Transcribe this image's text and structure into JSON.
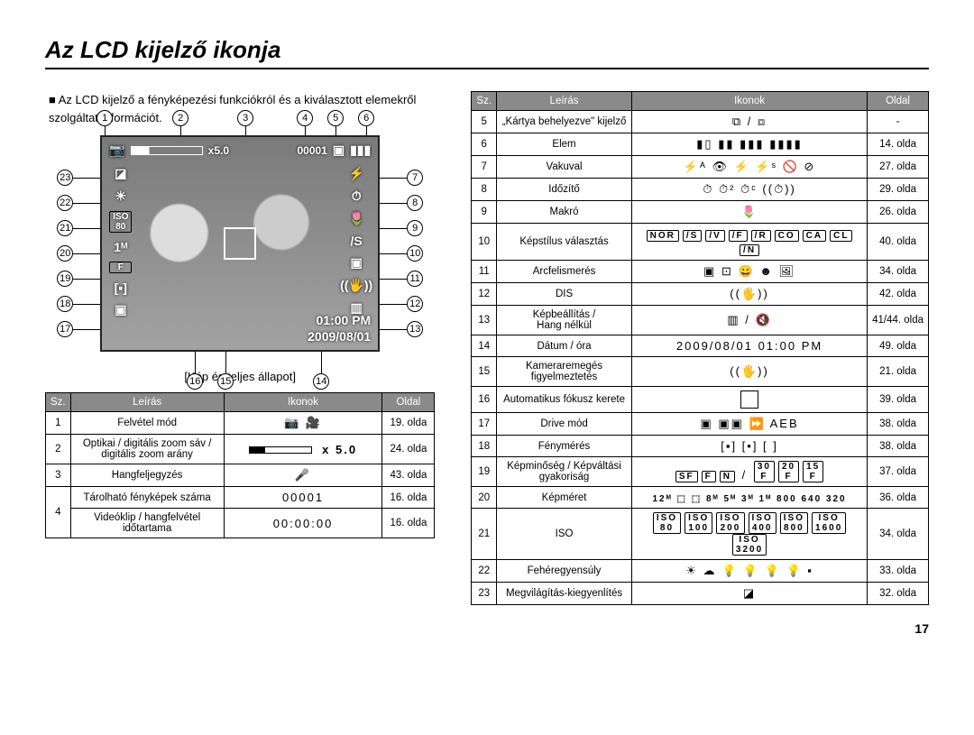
{
  "title": "Az LCD kijelző ikonja",
  "intro": "Az LCD kijelző a fényképezési funkciókról és a kiválasztott elemekről szolgáltat információt.",
  "diagram_caption": "[Kép és teljes állapot]",
  "page_number": "17",
  "lcd_overlay": {
    "zoom_text": "x5.0",
    "counter": "00001",
    "time": "01:00 PM",
    "date": "2009/08/01"
  },
  "callouts_top": [
    "1",
    "2",
    "3",
    "4",
    "5",
    "6"
  ],
  "callouts_right": [
    "7",
    "8",
    "9",
    "10",
    "11",
    "12",
    "13"
  ],
  "callouts_left": [
    "23",
    "22",
    "21",
    "20",
    "19",
    "18",
    "17"
  ],
  "callouts_bottom": [
    "16",
    "15",
    "14"
  ],
  "table_headers": {
    "sz": "Sz.",
    "leiras": "Leírás",
    "ikonok": "Ikonok",
    "oldal": "Oldal"
  },
  "table1_rows": [
    {
      "n": "1",
      "desc": "Felvétel mód",
      "icons": "📷  🎥",
      "page": "19. olda"
    },
    {
      "n": "2",
      "desc": "Optikai / digitális zoom sáv /\ndigitális zoom arány",
      "icons_html": "<span style='display:inline-block;width:70px;height:8px;border:1px solid #000;background:linear-gradient(to right,#000 0 25%,transparent 25%)'></span>  <b>x 5.0</b>",
      "page": "24. olda"
    },
    {
      "n": "3",
      "desc": "Hangfeljegyzés",
      "icons": "🎤",
      "page": "43. olda"
    },
    {
      "n": "4",
      "desc": "Tárolható fényképek száma",
      "icons": "00001",
      "page": "16. olda",
      "rowspan_n": 2
    },
    {
      "n": "",
      "desc": "Videóklip / hangfelvétel időtartama",
      "icons": "00:00:00",
      "page": "16. olda"
    }
  ],
  "table2_rows": [
    {
      "n": "5",
      "desc": "„Kártya behelyezve\" kijelző",
      "icons": "⧉ / ⧈",
      "page": "-"
    },
    {
      "n": "6",
      "desc": "Elem",
      "icons": "▮▯  ▮▮  ▮▮▮  ▮▮▮▮",
      "page": "14. olda"
    },
    {
      "n": "7",
      "desc": "Vakuval",
      "icons": "⚡ᴬ  👁  ⚡  ⚡ˢ  🚫  ⊘",
      "page": "27. olda"
    },
    {
      "n": "8",
      "desc": "Időzítő",
      "icons": "⏱  ⏱²  ⏱ᶜ  ((⏱))",
      "page": "29. olda"
    },
    {
      "n": "9",
      "desc": "Makró",
      "icons": "🌷",
      "page": "26. olda"
    },
    {
      "n": "10",
      "desc": "Képstílus választás",
      "icons_html": "<span class='icon-box'>NOR</span><span class='icon-box'>/S</span><span class='icon-box'>/V</span><span class='icon-box'>/F</span><span class='icon-box'>/R</span><span class='icon-box'>CO</span><span class='icon-box'>CA</span><span class='icon-box'>CL</span><span class='icon-box'>/N</span>",
      "page": "40. olda"
    },
    {
      "n": "11",
      "desc": "Arcfelismerés",
      "icons": "▣  ⊡  😀  ☻  🖼",
      "page": "34. olda"
    },
    {
      "n": "12",
      "desc": "DIS",
      "icons": "((🖐))",
      "page": "42. olda"
    },
    {
      "n": "13",
      "desc": "Képbeállítás /\nHang nélkül",
      "icons": "▥ / 🔇",
      "page": "41/44. olda"
    },
    {
      "n": "14",
      "desc": "Dátum / óra",
      "icons": "2009/08/01  01:00 PM",
      "page": "49. olda"
    },
    {
      "n": "15",
      "desc": "Kameraremegés figyelmeztetés",
      "icons": "((🖐))",
      "page": "21. olda"
    },
    {
      "n": "16",
      "desc": "Automatikus fókusz kerete",
      "icons_html": "<span style='display:inline-block;width:20px;height:20px;border:1px solid #000;vertical-align:middle'></span>",
      "page": "39. olda"
    },
    {
      "n": "17",
      "desc": "Drive mód",
      "icons": "▣  ▣▣  ⏩  AEB",
      "page": "38. olda"
    },
    {
      "n": "18",
      "desc": "Fénymérés",
      "icons": "[▪]  [•]  [ ]",
      "page": "38. olda"
    },
    {
      "n": "19",
      "desc": "Képminőség / Képváltási gyakoriság",
      "icons_html": "<span class='icon-box'>SF</span><span class='icon-box'>F</span><span class='icon-box'>N</span> / <span class='icon-box'>30<br>F</span><span class='icon-box'>20<br>F</span><span class='icon-box'>15<br>F</span>",
      "page": "37. olda"
    },
    {
      "n": "20",
      "desc": "Képméret",
      "icons_html": "<b style='font-size:10px'>12ᴹ ⬚ ⬚ 8ᴹ 5ᴹ 3ᴹ 1ᴹ 800 640 320</b>",
      "page": "36. olda"
    },
    {
      "n": "21",
      "desc": "ISO",
      "icons_html": "<span class='icon-box'>ISO<br>80</span><span class='icon-box'>ISO<br>100</span><span class='icon-box'>ISO<br>200</span><span class='icon-box'>ISO<br>400</span><span class='icon-box'>ISO<br>800</span><span class='icon-box'>ISO<br>1600</span><span class='icon-box'>ISO<br>3200</span>",
      "page": "34. olda"
    },
    {
      "n": "22",
      "desc": "Fehéregyensúly",
      "icons": "☀  ☁  💡  💡  💡  💡  ▪",
      "page": "33. olda"
    },
    {
      "n": "23",
      "desc": "Megvilágítás-kiegyenlítés",
      "icons": "◪",
      "page": "32. olda"
    }
  ]
}
